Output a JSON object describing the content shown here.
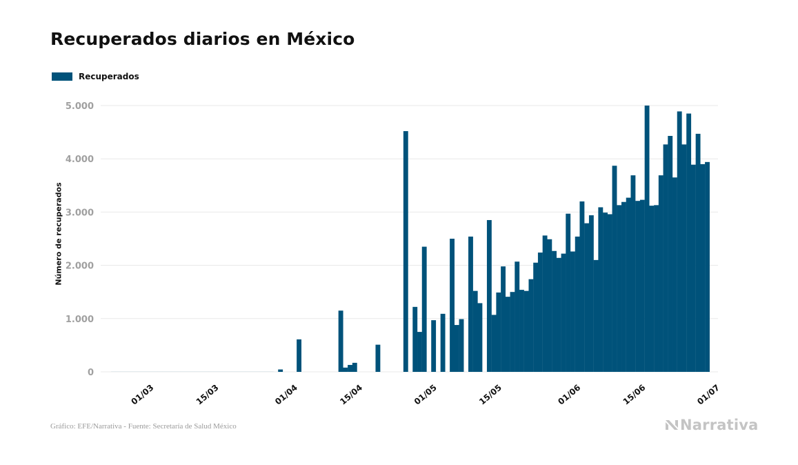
{
  "title": "Recuperados diarios en México",
  "footer": {
    "source": "Gráfico: EFE/Narrativa - Fuente: Secretaría de Salud México",
    "brand": "Narrativa",
    "brand_icon": "narrativa-logo-icon"
  },
  "colors": {
    "bar": "#00527a",
    "grid": "#e8e8e8",
    "tick_y": "#a0a0a0",
    "tick_x": "#111111"
  },
  "chart_data": {
    "type": "bar",
    "ylabel": "Número de recuperados",
    "xlabel": "",
    "ylim": [
      0,
      5000
    ],
    "grid": true,
    "legend_position": "top-left",
    "yticks": [
      0,
      1000,
      2000,
      3000,
      4000,
      5000
    ],
    "ytick_labels": [
      "0",
      "1.000",
      "2.000",
      "3.000",
      "4.000",
      "5.000"
    ],
    "xticks": [
      "2020-03-01",
      "2020-03-15",
      "2020-04-01",
      "2020-04-15",
      "2020-05-01",
      "2020-05-15",
      "2020-06-01",
      "2020-06-15",
      "2020-07-01"
    ],
    "xtick_labels": [
      "01/03",
      "15/03",
      "01/04",
      "15/04",
      "01/05",
      "15/05",
      "01/06",
      "15/06",
      "01/07"
    ],
    "series": [
      {
        "name": "Recuperados",
        "x": [
          "2020-02-23",
          "2020-02-24",
          "2020-02-25",
          "2020-02-26",
          "2020-02-27",
          "2020-02-28",
          "2020-02-29",
          "2020-03-01",
          "2020-03-02",
          "2020-03-03",
          "2020-03-04",
          "2020-03-05",
          "2020-03-06",
          "2020-03-07",
          "2020-03-08",
          "2020-03-09",
          "2020-03-10",
          "2020-03-11",
          "2020-03-12",
          "2020-03-13",
          "2020-03-14",
          "2020-03-15",
          "2020-03-16",
          "2020-03-17",
          "2020-03-18",
          "2020-03-19",
          "2020-03-20",
          "2020-03-21",
          "2020-03-22",
          "2020-03-23",
          "2020-03-24",
          "2020-03-25",
          "2020-03-26",
          "2020-03-27",
          "2020-03-28",
          "2020-03-29",
          "2020-03-30",
          "2020-03-31",
          "2020-04-01",
          "2020-04-02",
          "2020-04-03",
          "2020-04-04",
          "2020-04-05",
          "2020-04-06",
          "2020-04-07",
          "2020-04-08",
          "2020-04-09",
          "2020-04-10",
          "2020-04-11",
          "2020-04-12",
          "2020-04-13",
          "2020-04-14",
          "2020-04-15",
          "2020-04-16",
          "2020-04-17",
          "2020-04-18",
          "2020-04-19",
          "2020-04-20",
          "2020-04-21",
          "2020-04-22",
          "2020-04-23",
          "2020-04-24",
          "2020-04-25",
          "2020-04-26",
          "2020-04-27",
          "2020-04-28",
          "2020-04-29",
          "2020-04-30",
          "2020-05-01",
          "2020-05-02",
          "2020-05-03",
          "2020-05-04",
          "2020-05-05",
          "2020-05-06",
          "2020-05-07",
          "2020-05-08",
          "2020-05-09",
          "2020-05-10",
          "2020-05-11",
          "2020-05-12",
          "2020-05-13",
          "2020-05-14",
          "2020-05-15",
          "2020-05-16",
          "2020-05-17",
          "2020-05-18",
          "2020-05-19",
          "2020-05-20",
          "2020-05-21",
          "2020-05-22",
          "2020-05-23",
          "2020-05-24",
          "2020-05-25",
          "2020-05-26",
          "2020-05-27",
          "2020-05-28",
          "2020-05-29",
          "2020-05-30",
          "2020-05-31",
          "2020-06-01",
          "2020-06-02",
          "2020-06-03",
          "2020-06-04",
          "2020-06-05",
          "2020-06-06",
          "2020-06-07",
          "2020-06-08",
          "2020-06-09",
          "2020-06-10",
          "2020-06-11",
          "2020-06-12",
          "2020-06-13",
          "2020-06-14",
          "2020-06-15",
          "2020-06-16",
          "2020-06-17",
          "2020-06-18",
          "2020-06-19",
          "2020-06-20",
          "2020-06-21",
          "2020-06-22",
          "2020-06-23",
          "2020-06-24",
          "2020-06-25",
          "2020-06-26",
          "2020-06-27",
          "2020-06-28",
          "2020-06-29",
          "2020-06-30"
        ],
        "values": [
          4,
          4,
          4,
          4,
          4,
          4,
          4,
          4,
          4,
          4,
          4,
          4,
          4,
          4,
          4,
          4,
          4,
          4,
          4,
          4,
          4,
          4,
          4,
          4,
          4,
          4,
          4,
          4,
          4,
          4,
          4,
          4,
          4,
          4,
          4,
          0,
          45,
          0,
          0,
          0,
          610,
          0,
          0,
          0,
          0,
          0,
          0,
          0,
          0,
          1150,
          80,
          130,
          170,
          0,
          0,
          0,
          0,
          510,
          0,
          0,
          0,
          0,
          0,
          4520,
          0,
          1220,
          750,
          2350,
          0,
          970,
          0,
          1090,
          0,
          2500,
          880,
          990,
          0,
          2540,
          1520,
          1290,
          0,
          2850,
          1070,
          1490,
          1980,
          1410,
          1500,
          2070,
          1540,
          1520,
          1740,
          2050,
          2240,
          2560,
          2490,
          2270,
          2140,
          2220,
          2970,
          2260,
          2540,
          3200,
          2790,
          2940,
          2100,
          3090,
          2990,
          2960,
          3870,
          3130,
          3190,
          3270,
          3690,
          3210,
          3230,
          5000,
          3120,
          3130,
          3690,
          4270,
          4430,
          3650,
          4890,
          4270,
          4850,
          3890,
          4470,
          3900,
          3940
        ]
      }
    ]
  }
}
